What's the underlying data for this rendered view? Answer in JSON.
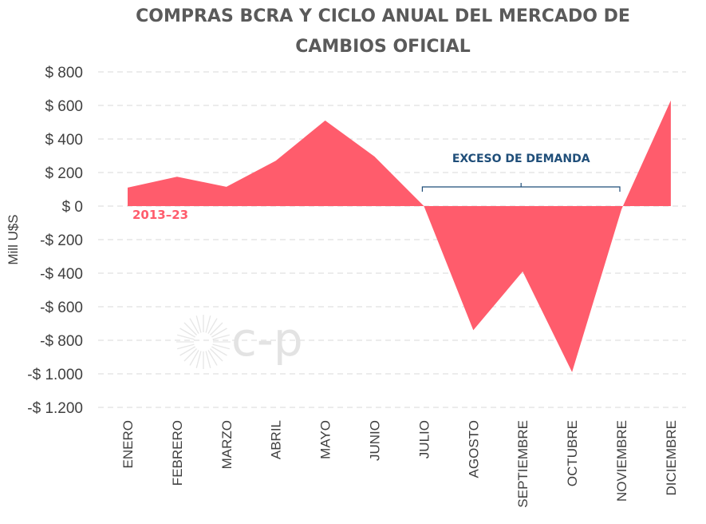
{
  "chart_data": {
    "type": "area",
    "title_lines": [
      "COMPRAS BCRA Y CICLO ANUAL DEL MERCADO DE",
      "CAMBIOS OFICIAL"
    ],
    "ylabel": "Mill U$S",
    "xlabel": "",
    "ylim": [
      -1200,
      800
    ],
    "yticks": [
      800,
      600,
      400,
      200,
      0,
      -200,
      -400,
      -600,
      -800,
      -1000,
      -1200
    ],
    "ytick_labels": [
      "$ 800",
      "$ 600",
      "$ 400",
      "$ 200",
      "$ 0",
      "-$ 200",
      "-$ 400",
      "-$ 600",
      "-$ 800",
      "-$ 1.000",
      "-$ 1.200"
    ],
    "categories": [
      "ENERO",
      "FEBRERO",
      "MARZO",
      "ABRIL",
      "MAYO",
      "JUNIO",
      "JULIO",
      "AGOSTO",
      "SEPTIEMBRE",
      "OCTUBRE",
      "NOVIEMBRE",
      "DICIEMBRE"
    ],
    "series": [
      {
        "name": "2013–23",
        "values": [
          110,
          175,
          115,
          270,
          510,
          295,
          0,
          -740,
          -390,
          -990,
          -20,
          630
        ]
      }
    ],
    "grid": "horizontal dashed",
    "series_color": "#ff5c6c",
    "annotation": {
      "text": "EXCESO DE DEMANDA",
      "from_category": "JULIO",
      "to_category": "NOVIEMBRE",
      "color": "#1f4e79"
    },
    "watermark": "c-p"
  }
}
